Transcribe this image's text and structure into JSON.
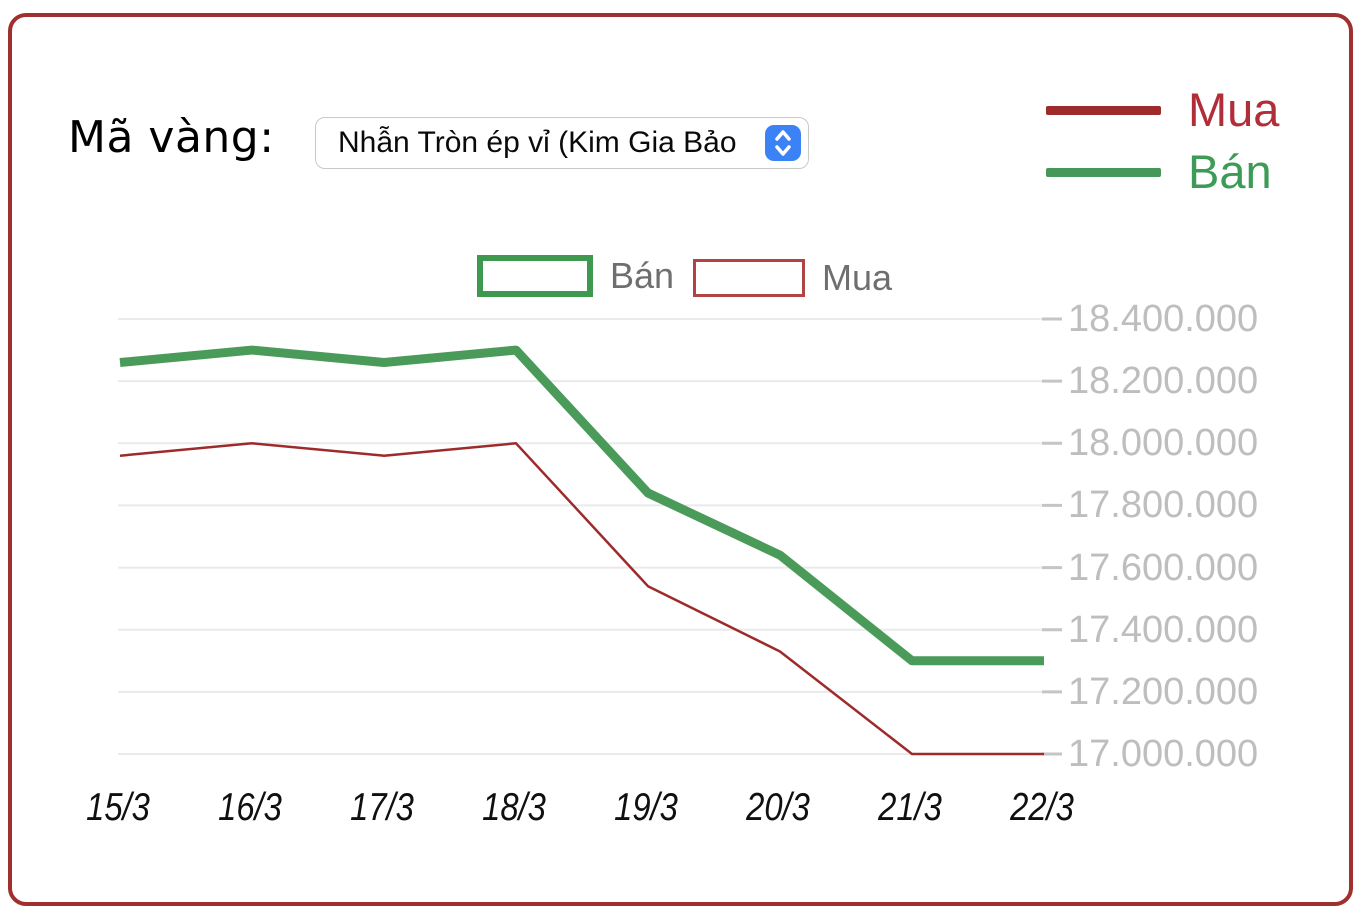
{
  "header": {
    "label": "Mã vàng:"
  },
  "gold_select": {
    "value": "Nhẫn Tròn ép vỉ (Kim Gia Bảo"
  },
  "page_legend": {
    "items": [
      {
        "label": "Mua",
        "swatch_color": "#9e2b2b",
        "text_color": "#b12e39"
      },
      {
        "label": "Bán",
        "swatch_color": "#45985a",
        "text_color": "#3d9b57"
      }
    ]
  },
  "chart_legend": {
    "items": [
      {
        "label": "Bán",
        "box_color": "#3f9850"
      },
      {
        "label": "Mua",
        "box_color": "#b04343"
      }
    ]
  },
  "chart_data": {
    "type": "line",
    "title": "",
    "xlabel": "",
    "ylabel": "",
    "categories": [
      "15/3",
      "16/3",
      "17/3",
      "18/3",
      "19/3",
      "20/3",
      "21/3",
      "22/3"
    ],
    "series": [
      {
        "name": "Bán",
        "key": "ban",
        "color": "#4a9b59",
        "stroke_width": 9,
        "values": [
          18260000,
          18300000,
          18260000,
          18300000,
          17840000,
          17640000,
          17300000,
          17300000
        ]
      },
      {
        "name": "Mua",
        "key": "mua",
        "color": "#9e2b2b",
        "stroke_width": 2.5,
        "values": [
          17960000,
          18000000,
          17960000,
          18000000,
          17540000,
          17330000,
          17000000,
          17000000
        ]
      }
    ],
    "y_ticks": [
      {
        "value": 18400000,
        "label": "18.400.000"
      },
      {
        "value": 18200000,
        "label": "18.200.000"
      },
      {
        "value": 18000000,
        "label": "18.000.000"
      },
      {
        "value": 17800000,
        "label": "17.800.000"
      },
      {
        "value": 17600000,
        "label": "17.600.000"
      },
      {
        "value": 17400000,
        "label": "17.400.000"
      },
      {
        "value": 17200000,
        "label": "17.200.000"
      },
      {
        "value": 17000000,
        "label": "17.000.000"
      }
    ],
    "ylim": [
      17000000,
      18400000
    ],
    "grid": true,
    "grid_color": "#eaeaea",
    "tick_color": "#c6c4c4",
    "axis_side": "right",
    "legend_position": "top-center"
  }
}
